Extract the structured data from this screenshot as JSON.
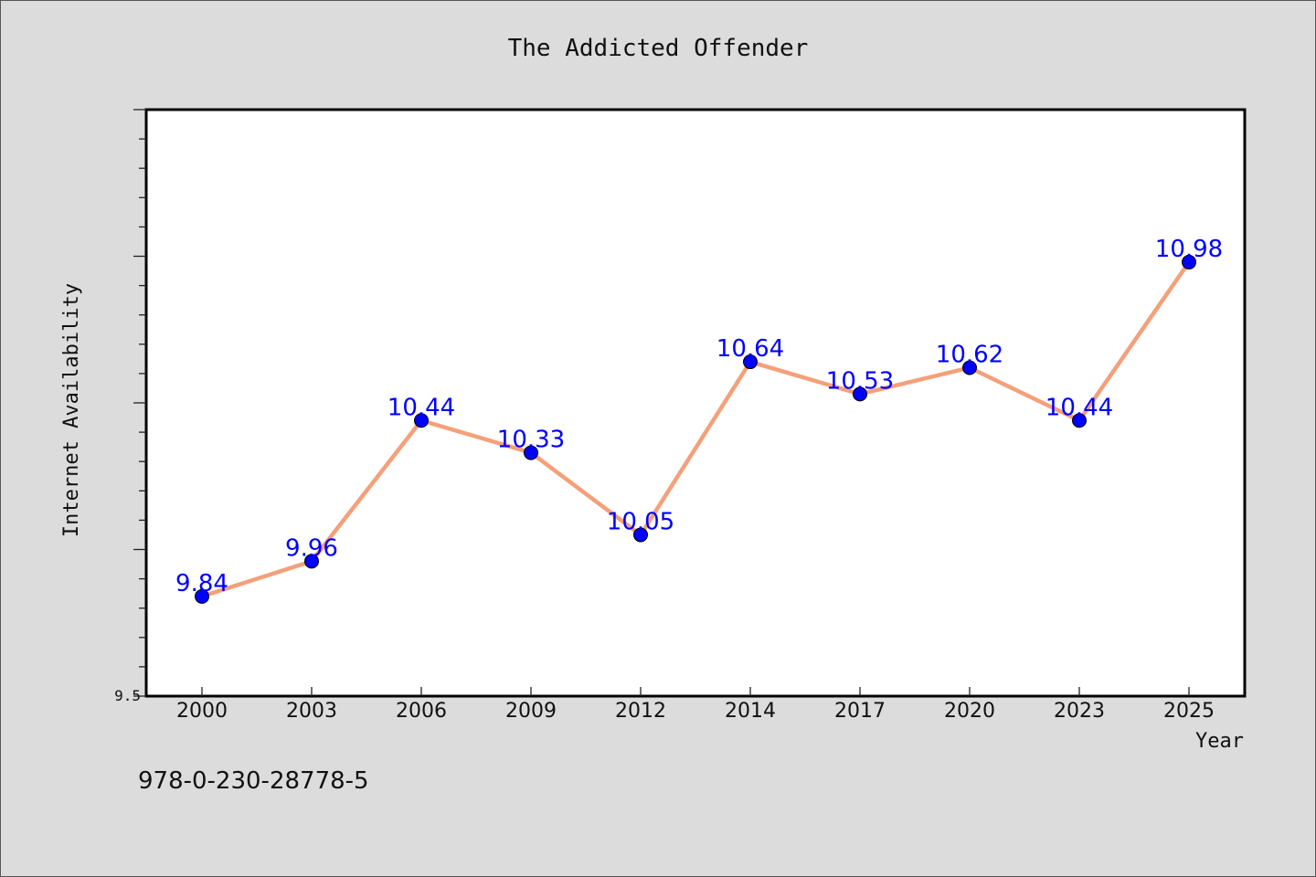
{
  "chart_data": {
    "type": "line",
    "title": "The Addicted Offender",
    "xlabel": "Year",
    "ylabel": "Internet Availability",
    "categories": [
      "2000",
      "2003",
      "2006",
      "2009",
      "2012",
      "2014",
      "2017",
      "2020",
      "2023",
      "2025"
    ],
    "series": [
      {
        "values": [
          9.84,
          9.96,
          10.44,
          10.33,
          10.05,
          10.64,
          10.53,
          10.62,
          10.44,
          10.98
        ]
      }
    ],
    "ylim": [
      9.5,
      11.5
    ],
    "y_tick_labels": [
      "9.5"
    ],
    "data_labels": [
      "9.84",
      "9.96",
      "10.44",
      "10.33",
      "10.05",
      "10.64",
      "10.53",
      "10.62",
      "10.44",
      "10.98"
    ],
    "grid": false,
    "legend": "none",
    "colors": {
      "line": "#f4a07a",
      "marker": "#0000ff",
      "label": "#0000ff",
      "plot_bg": "#ffffff",
      "page_bg": "#dcdcdc"
    }
  },
  "footer_text": "978-0-230-28778-5"
}
